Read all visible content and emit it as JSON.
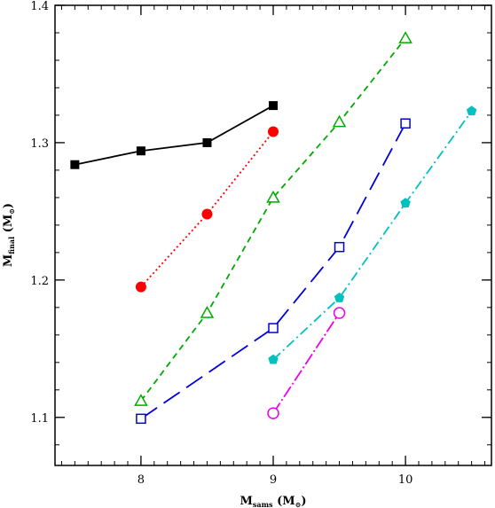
{
  "chart_data": {
    "type": "line",
    "xlabel": {
      "main": "M",
      "sub": "sams",
      "unit_open": " (M",
      "unit_sym": "⊙",
      "unit_close": ")"
    },
    "ylabel": {
      "main": "M",
      "sub": "final",
      "unit_open": " (M",
      "unit_sym": "⊙",
      "unit_close": ")"
    },
    "xlim": [
      7.35,
      10.65
    ],
    "ylim": [
      1.065,
      1.4
    ],
    "x_ticks_major": [
      8,
      9,
      10
    ],
    "x_tick_labels": [
      "8",
      "9",
      "10"
    ],
    "y_ticks_major": [
      1.1,
      1.2,
      1.3,
      1.4
    ],
    "y_tick_labels": [
      "1.1",
      "1.2",
      "1.3",
      "1.4"
    ],
    "x_minor_step": 0.1,
    "y_minor_step": 0.02,
    "grid": false,
    "legend": "none",
    "series": [
      {
        "color": "#000000",
        "dash": "",
        "marker": "square-filled",
        "x": [
          7.5,
          8.0,
          8.5,
          9.0
        ],
        "y": [
          1.284,
          1.294,
          1.3,
          1.327
        ]
      },
      {
        "color": "#ff0000",
        "dash": "2,3",
        "marker": "circle-filled",
        "x": [
          8.0,
          8.5,
          9.0
        ],
        "y": [
          1.195,
          1.248,
          1.308
        ]
      },
      {
        "color": "#00aa00",
        "dash": "7,5",
        "marker": "triangle-open",
        "x": [
          8.0,
          8.5,
          9.0,
          9.5,
          10.0
        ],
        "y": [
          1.112,
          1.176,
          1.26,
          1.315,
          1.376
        ]
      },
      {
        "color": "#0000dd",
        "dash": "22,9",
        "marker": "square-open",
        "x": [
          8.0,
          9.0,
          9.5,
          10.0
        ],
        "y": [
          1.099,
          1.165,
          1.224,
          1.314
        ]
      },
      {
        "color": "#00c0c0",
        "dash": "11,4,2,4",
        "marker": "pentagon-filled",
        "x": [
          9.0,
          9.5,
          10.0,
          10.5
        ],
        "y": [
          1.142,
          1.187,
          1.256,
          1.323
        ]
      },
      {
        "color": "#ee00ee",
        "dash": "14,3,2,3",
        "marker": "circle-open",
        "x": [
          9.0,
          9.5
        ],
        "y": [
          1.103,
          1.176
        ]
      }
    ]
  }
}
